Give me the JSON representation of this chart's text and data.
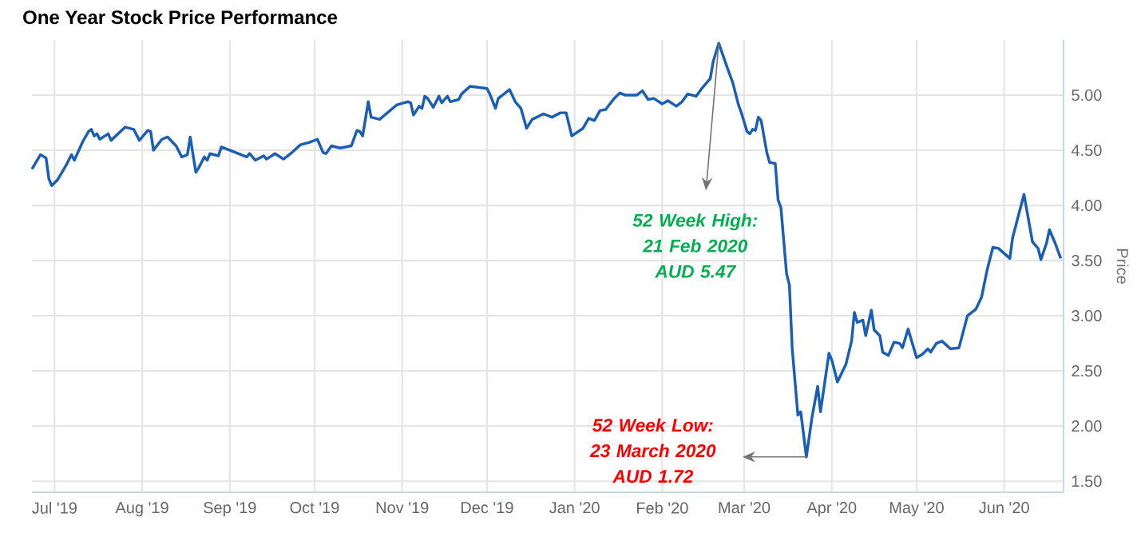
{
  "chart_data": {
    "type": "line",
    "title": "One Year Stock Price Performance",
    "ylabel": "Price",
    "x": [
      "2019-06-23",
      "2019-06-26",
      "2019-06-28",
      "2019-06-29",
      "2019-06-30",
      "2019-07-02",
      "2019-07-05",
      "2019-07-07",
      "2019-07-08",
      "2019-07-11",
      "2019-07-13",
      "2019-07-14",
      "2019-07-15",
      "2019-07-16",
      "2019-07-17",
      "2019-07-20",
      "2019-07-21",
      "2019-07-26",
      "2019-07-29",
      "2019-07-31",
      "2019-08-03",
      "2019-08-04",
      "2019-08-05",
      "2019-08-08",
      "2019-08-10",
      "2019-08-13",
      "2019-08-15",
      "2019-08-17",
      "2019-08-18",
      "2019-08-20",
      "2019-08-21",
      "2019-08-23",
      "2019-08-24",
      "2019-08-25",
      "2019-08-28",
      "2019-08-29",
      "2019-09-02",
      "2019-09-07",
      "2019-09-08",
      "2019-09-10",
      "2019-09-13",
      "2019-09-14",
      "2019-09-17",
      "2019-09-20",
      "2019-09-23",
      "2019-09-26",
      "2019-09-29",
      "2019-10-02",
      "2019-10-04",
      "2019-10-05",
      "2019-10-07",
      "2019-10-10",
      "2019-10-14",
      "2019-10-16",
      "2019-10-17",
      "2019-10-18",
      "2019-10-20",
      "2019-10-21",
      "2019-10-24",
      "2019-10-30",
      "2019-11-03",
      "2019-11-04",
      "2019-11-05",
      "2019-11-07",
      "2019-11-08",
      "2019-11-09",
      "2019-11-10",
      "2019-11-12",
      "2019-11-14",
      "2019-11-15",
      "2019-11-17",
      "2019-11-18",
      "2019-11-21",
      "2019-11-22",
      "2019-11-25",
      "2019-12-01",
      "2019-12-02",
      "2019-12-04",
      "2019-12-05",
      "2019-12-09",
      "2019-12-11",
      "2019-12-13",
      "2019-12-15",
      "2019-12-17",
      "2019-12-21",
      "2019-12-24",
      "2019-12-27",
      "2019-12-29",
      "2019-12-31",
      "2020-01-04",
      "2020-01-06",
      "2020-01-08",
      "2020-01-10",
      "2020-01-12",
      "2020-01-15",
      "2020-01-17",
      "2020-01-19",
      "2020-01-23",
      "2020-01-25",
      "2020-01-27",
      "2020-01-29",
      "2020-02-01",
      "2020-02-03",
      "2020-02-06",
      "2020-02-08",
      "2020-02-10",
      "2020-02-13",
      "2020-02-15",
      "2020-02-18",
      "2020-02-19",
      "2020-02-21",
      "2020-02-24",
      "2020-02-26",
      "2020-02-28",
      "2020-02-29",
      "2020-03-02",
      "2020-03-03",
      "2020-03-04",
      "2020-03-05",
      "2020-03-06",
      "2020-03-07",
      "2020-03-09",
      "2020-03-10",
      "2020-03-12",
      "2020-03-13",
      "2020-03-14",
      "2020-03-16",
      "2020-03-17",
      "2020-03-18",
      "2020-03-20",
      "2020-03-21",
      "2020-03-23",
      "2020-03-25",
      "2020-03-27",
      "2020-03-28",
      "2020-03-31",
      "2020-04-01",
      "2020-04-03",
      "2020-04-06",
      "2020-04-08",
      "2020-04-09",
      "2020-04-10",
      "2020-04-12",
      "2020-04-13",
      "2020-04-15",
      "2020-04-16",
      "2020-04-18",
      "2020-04-19",
      "2020-04-21",
      "2020-04-23",
      "2020-04-25",
      "2020-04-26",
      "2020-04-28",
      "2020-05-01",
      "2020-05-03",
      "2020-05-05",
      "2020-05-06",
      "2020-05-08",
      "2020-05-10",
      "2020-05-13",
      "2020-05-16",
      "2020-05-19",
      "2020-05-22",
      "2020-05-24",
      "2020-05-26",
      "2020-05-28",
      "2020-05-30",
      "2020-06-03",
      "2020-06-04",
      "2020-06-08",
      "2020-06-11",
      "2020-06-13",
      "2020-06-14",
      "2020-06-16",
      "2020-06-17",
      "2020-06-19",
      "2020-06-21"
    ],
    "series": [
      {
        "color": "#1a5fb4",
        "values": [
          4.33,
          4.46,
          4.43,
          4.24,
          4.18,
          4.23,
          4.36,
          4.46,
          4.41,
          4.58,
          4.67,
          4.69,
          4.63,
          4.65,
          4.6,
          4.65,
          4.59,
          4.71,
          4.69,
          4.59,
          4.68,
          4.67,
          4.5,
          4.6,
          4.62,
          4.54,
          4.44,
          4.46,
          4.62,
          4.3,
          4.34,
          4.44,
          4.41,
          4.47,
          4.45,
          4.53,
          4.49,
          4.44,
          4.47,
          4.41,
          4.45,
          4.42,
          4.47,
          4.42,
          4.48,
          4.55,
          4.57,
          4.6,
          4.48,
          4.47,
          4.54,
          4.52,
          4.54,
          4.68,
          4.67,
          4.63,
          4.94,
          4.8,
          4.78,
          4.91,
          4.94,
          4.93,
          4.82,
          4.9,
          4.88,
          4.99,
          4.97,
          4.89,
          4.99,
          4.93,
          4.99,
          4.94,
          4.96,
          5.01,
          5.08,
          5.06,
          5.01,
          4.88,
          4.97,
          5.05,
          4.94,
          4.88,
          4.7,
          4.78,
          4.83,
          4.8,
          4.84,
          4.84,
          4.63,
          4.7,
          4.79,
          4.77,
          4.86,
          4.87,
          4.97,
          5.02,
          5.0,
          5.0,
          5.04,
          4.96,
          4.97,
          4.92,
          4.95,
          4.9,
          4.94,
          5.01,
          4.99,
          5.06,
          5.15,
          5.3,
          5.47,
          5.25,
          5.11,
          4.91,
          4.84,
          4.67,
          4.65,
          4.69,
          4.68,
          4.8,
          4.77,
          4.48,
          4.39,
          4.38,
          4.05,
          3.98,
          3.38,
          3.28,
          2.7,
          2.1,
          2.13,
          1.72,
          2.08,
          2.36,
          2.13,
          2.66,
          2.6,
          2.4,
          2.56,
          2.77,
          3.03,
          2.94,
          2.96,
          2.82,
          3.05,
          2.87,
          2.82,
          2.67,
          2.64,
          2.76,
          2.75,
          2.71,
          2.88,
          2.62,
          2.65,
          2.7,
          2.67,
          2.75,
          2.77,
          2.7,
          2.71,
          3.0,
          3.06,
          3.17,
          3.42,
          3.62,
          3.61,
          3.52,
          3.71,
          4.1,
          3.67,
          3.61,
          3.51,
          3.66,
          3.78,
          3.66,
          3.52
        ]
      }
    ],
    "xlim": [
      "2019-06-23",
      "2020-06-22"
    ],
    "xticks": [
      {
        "value": "2019-07-01",
        "label": "Jul '19"
      },
      {
        "value": "2019-08-01",
        "label": "Aug '19"
      },
      {
        "value": "2019-09-01",
        "label": "Sep '19"
      },
      {
        "value": "2019-10-01",
        "label": "Oct '19"
      },
      {
        "value": "2019-11-01",
        "label": "Nov '19"
      },
      {
        "value": "2019-12-01",
        "label": "Dec '19"
      },
      {
        "value": "2020-01-01",
        "label": "Jan '20"
      },
      {
        "value": "2020-02-01",
        "label": "Feb '20"
      },
      {
        "value": "2020-03-01",
        "label": "Mar '20"
      },
      {
        "value": "2020-04-01",
        "label": "Apr '20"
      },
      {
        "value": "2020-05-01",
        "label": "May '20"
      },
      {
        "value": "2020-06-01",
        "label": "Jun '20"
      }
    ],
    "ylim": [
      1.4,
      5.5
    ],
    "yticks": [
      {
        "value": 1.5,
        "label": "1.50"
      },
      {
        "value": 2,
        "label": "2.00"
      },
      {
        "value": 2.5,
        "label": "2.50"
      },
      {
        "value": 3,
        "label": "3.00"
      },
      {
        "value": 3.5,
        "label": "3.50"
      },
      {
        "value": 4,
        "label": "4.00"
      },
      {
        "value": 4.5,
        "label": "4.50"
      },
      {
        "value": 5,
        "label": "5.00"
      }
    ],
    "grid": true,
    "annotations": [
      "52 Week High: 21 Feb 2020 AUD 5.47",
      "52 Week Low: 23 March 2020 AUD 1.72"
    ]
  }
}
